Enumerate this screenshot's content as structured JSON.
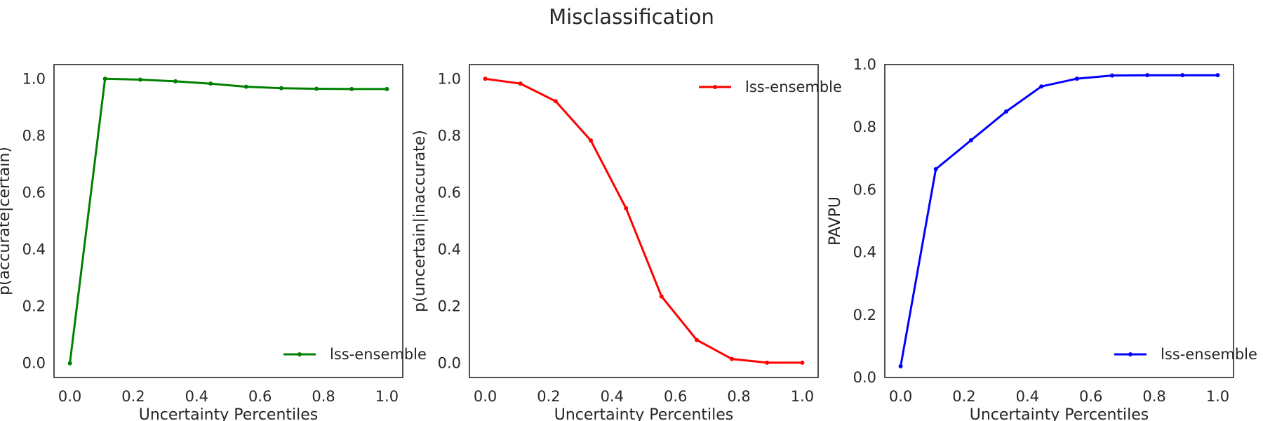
{
  "figure": {
    "title": "Misclassification"
  },
  "chart_data": [
    {
      "type": "line",
      "xlabel": "Uncertainty Percentiles",
      "ylabel": "p(accurate|certain)",
      "xlim": [
        -0.05,
        1.05
      ],
      "ylim": [
        -0.05,
        1.05
      ],
      "xticks": [
        "0.0",
        "0.2",
        "0.4",
        "0.6",
        "0.8",
        "1.0"
      ],
      "yticks": [
        "0.0",
        "0.2",
        "0.4",
        "0.6",
        "0.8",
        "1.0"
      ],
      "grid": false,
      "legend_position": "lower-right",
      "series": [
        {
          "name": "lss-ensemble",
          "color": "#008000",
          "x": [
            0.0,
            0.111,
            0.222,
            0.333,
            0.444,
            0.556,
            0.667,
            0.778,
            0.889,
            1.0
          ],
          "y": [
            0.0,
            1.0,
            0.997,
            0.991,
            0.983,
            0.972,
            0.967,
            0.965,
            0.964,
            0.964
          ]
        }
      ]
    },
    {
      "type": "line",
      "xlabel": "Uncertainty Percentiles",
      "ylabel": "p(uncertain|inaccurate)",
      "xlim": [
        -0.05,
        1.05
      ],
      "ylim": [
        -0.05,
        1.05
      ],
      "xticks": [
        "0.0",
        "0.2",
        "0.4",
        "0.6",
        "0.8",
        "1.0"
      ],
      "yticks": [
        "0.0",
        "0.2",
        "0.4",
        "0.6",
        "0.8",
        "1.0"
      ],
      "grid": false,
      "legend_position": "upper-right",
      "series": [
        {
          "name": "lss-ensemble",
          "color": "#ff0000",
          "x": [
            0.0,
            0.111,
            0.222,
            0.333,
            0.444,
            0.556,
            0.667,
            0.778,
            0.889,
            1.0
          ],
          "y": [
            1.0,
            0.983,
            0.921,
            0.783,
            0.545,
            0.235,
            0.082,
            0.015,
            0.002,
            0.002
          ]
        }
      ]
    },
    {
      "type": "line",
      "xlabel": "Uncertainty Percentiles",
      "ylabel": "PAVPU",
      "xlim": [
        -0.05,
        1.05
      ],
      "ylim": [
        0.0,
        1.0
      ],
      "xticks": [
        "0.0",
        "0.2",
        "0.4",
        "0.6",
        "0.8",
        "1.0"
      ],
      "yticks": [
        "0.0",
        "0.2",
        "0.4",
        "0.6",
        "0.8",
        "1.0"
      ],
      "grid": false,
      "legend_position": "lower-right",
      "series": [
        {
          "name": "lss-ensemble",
          "color": "#0000ff",
          "x": [
            0.0,
            0.111,
            0.222,
            0.333,
            0.444,
            0.556,
            0.667,
            0.778,
            0.889,
            1.0
          ],
          "y": [
            0.036,
            0.666,
            0.758,
            0.85,
            0.93,
            0.955,
            0.965,
            0.966,
            0.966,
            0.966
          ]
        }
      ]
    }
  ]
}
